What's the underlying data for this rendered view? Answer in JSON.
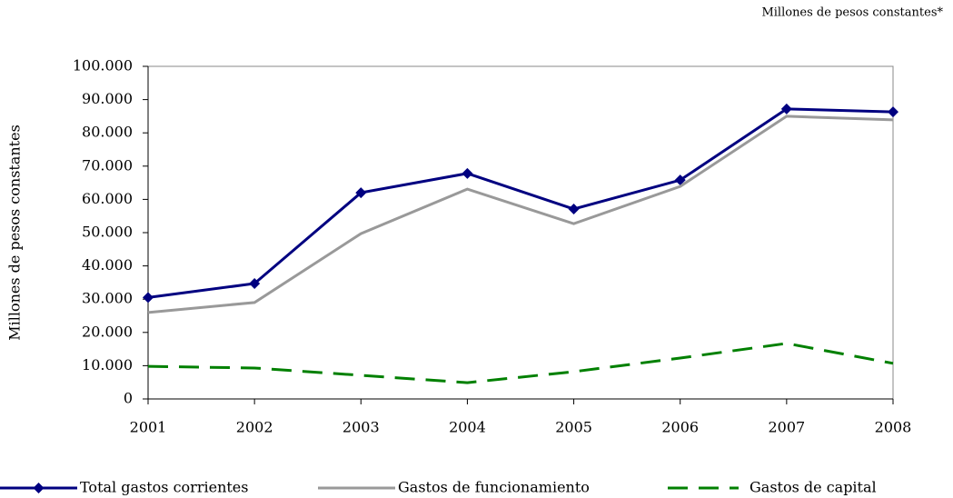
{
  "chart_data": {
    "type": "line",
    "note": "Millones de pesos constantes*",
    "y_label": "Millones de pesos constantes",
    "categories": [
      "2001",
      "2002",
      "2003",
      "2004",
      "2005",
      "2006",
      "2007",
      "2008"
    ],
    "series": [
      {
        "name": "Total gastos corrientes",
        "color": "#000080",
        "style": "solid",
        "marker": "diamond",
        "values": [
          30500,
          34700,
          62000,
          67800,
          57100,
          65800,
          87200,
          86300
        ]
      },
      {
        "name": "Gastos de funcionamiento",
        "color": "#999999",
        "style": "solid",
        "values": [
          26000,
          29000,
          49700,
          63100,
          52700,
          63900,
          85000,
          83900
        ]
      },
      {
        "name": "Gastos de capital",
        "color": "#008000",
        "style": "dashed",
        "values": [
          9800,
          9300,
          7100,
          4900,
          8200,
          12300,
          16700,
          10700
        ]
      }
    ],
    "ylim": [
      0,
      100000
    ],
    "yticks": [
      0,
      {
        "value": 10000,
        "label": "10.000"
      },
      {
        "value": 20000,
        "label": "20.000"
      },
      {
        "value": 30000,
        "label": "30.000"
      },
      {
        "value": 40000,
        "label": "40.000"
      },
      {
        "value": 50000,
        "label": "50.000"
      },
      {
        "value": 60000,
        "label": "60.000"
      },
      {
        "value": 70000,
        "label": "70.000"
      },
      {
        "value": 80000,
        "label": "80.000"
      },
      {
        "value": 90000,
        "label": "90.000"
      },
      {
        "value": 100000,
        "label": "100.000"
      }
    ]
  }
}
